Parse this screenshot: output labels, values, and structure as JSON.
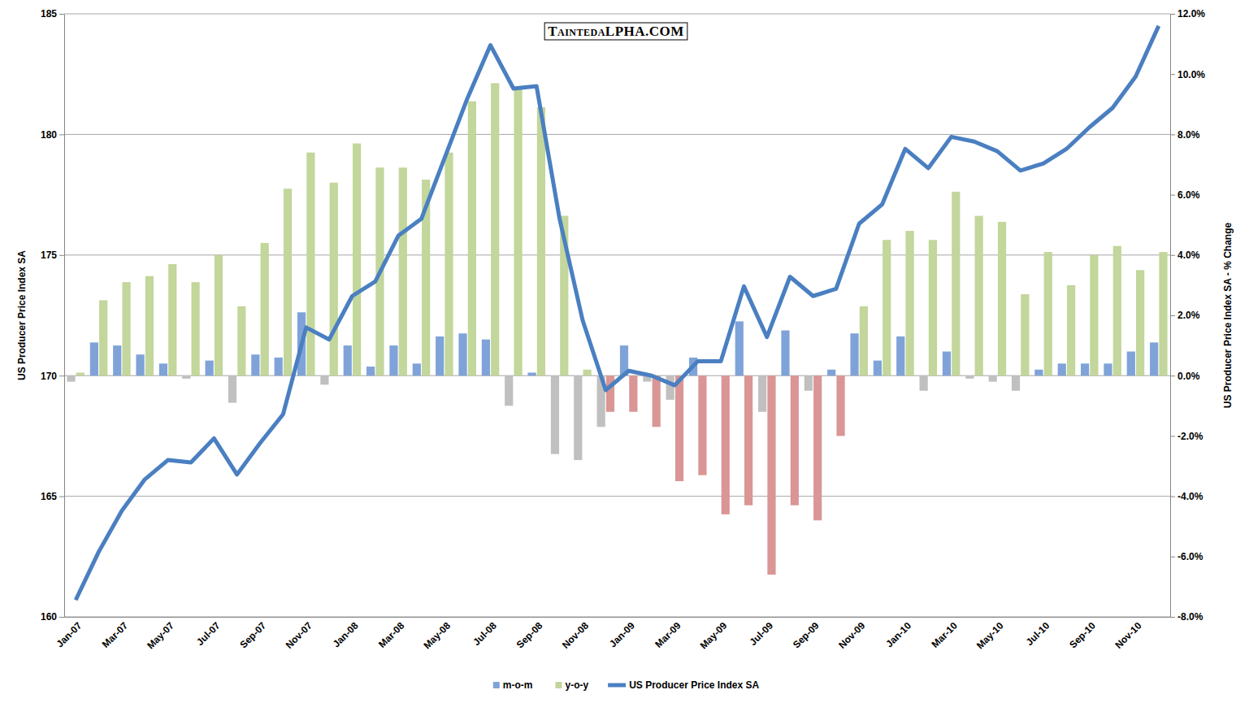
{
  "chart_data": {
    "type": "bar",
    "annotations": [
      "TaintedαLPHA.COM"
    ],
    "y_label": "US Producer Price Index SA",
    "y2_label": "US Producer Price Index SA - % Change",
    "categories": [
      "Jan-07",
      null,
      "Mar-07",
      null,
      "May-07",
      null,
      "Jul-07",
      null,
      "Sep-07",
      null,
      "Nov-07",
      null,
      "Jan-08",
      null,
      "Mar-08",
      null,
      "May-08",
      null,
      "Jul-08",
      null,
      "Sep-08",
      null,
      "Nov-08",
      null,
      "Jan-09",
      null,
      "Mar-09",
      null,
      "May-09",
      null,
      "Jul-09",
      null,
      "Sep-09",
      null,
      "Nov-09",
      null,
      "Jan-10",
      null,
      "Mar-10",
      null,
      "May-10",
      null,
      "Jul-10",
      null,
      "Sep-10",
      null,
      "Nov-10",
      null
    ],
    "ylim": [
      160,
      185
    ],
    "yticks": [
      160,
      165,
      170,
      175,
      180,
      185
    ],
    "y2lim": [
      -8,
      12
    ],
    "y2ticks": [
      {
        "value": -8,
        "label": "-8.0%"
      },
      {
        "value": -6,
        "label": "-6.0%"
      },
      {
        "value": -4,
        "label": "-4.0%"
      },
      {
        "value": -2,
        "label": "-2.0%"
      },
      {
        "value": 0,
        "label": "0.0%"
      },
      {
        "value": 2,
        "label": "2.0%"
      },
      {
        "value": 4,
        "label": "4.0%"
      },
      {
        "value": 6,
        "label": "6.0%"
      },
      {
        "value": 8,
        "label": "8.0%"
      },
      {
        "value": 10,
        "label": "10.0%"
      },
      {
        "value": 12,
        "label": "12.0%"
      }
    ],
    "grid": true,
    "legend": "bottom",
    "series": [
      {
        "name": "m-o-m",
        "type": "bar",
        "axis": "y2",
        "color": "#7fa3d8",
        "colors": [
          "#c0c0c0",
          "#7fa3d8",
          "#7fa3d8",
          "#7fa3d8",
          "#7fa3d8",
          "#c0c0c0",
          "#7fa3d8",
          "#c0c0c0",
          "#7fa3d8",
          "#7fa3d8",
          "#7fa3d8",
          "#c0c0c0",
          "#7fa3d8",
          "#7fa3d8",
          "#7fa3d8",
          "#7fa3d8",
          "#7fa3d8",
          "#7fa3d8",
          "#7fa3d8",
          "#c0c0c0",
          "#7fa3d8",
          "#c0c0c0",
          "#c0c0c0",
          "#c0c0c0",
          "#7fa3d8",
          "#c0c0c0",
          "#c0c0c0",
          "#7fa3d8",
          "#7fa3d8",
          "#7fa3d8",
          "#c0c0c0",
          "#7fa3d8",
          "#c0c0c0",
          "#7fa3d8",
          "#7fa3d8",
          "#7fa3d8",
          "#7fa3d8",
          "#c0c0c0",
          "#7fa3d8",
          "#c0c0c0",
          "#c0c0c0",
          "#c0c0c0",
          "#7fa3d8",
          "#7fa3d8",
          "#7fa3d8",
          "#7fa3d8",
          "#7fa3d8",
          "#7fa3d8"
        ],
        "values": [
          -0.2,
          1.1,
          1.0,
          0.7,
          0.4,
          -0.1,
          0.5,
          -0.9,
          0.7,
          0.6,
          2.1,
          -0.3,
          1.0,
          0.3,
          1.0,
          0.4,
          1.3,
          1.4,
          1.2,
          -1.0,
          0.1,
          -2.6,
          -2.8,
          -1.7,
          1.0,
          -0.2,
          -0.8,
          0.6,
          0.0,
          1.8,
          -1.2,
          1.5,
          -0.5,
          0.2,
          1.4,
          0.5,
          1.3,
          -0.5,
          0.8,
          -0.1,
          -0.2,
          -0.5,
          0.2,
          0.4,
          0.4,
          0.4,
          0.8,
          1.1
        ]
      },
      {
        "name": "y-o-y",
        "type": "bar",
        "axis": "y2",
        "color": "#c3d69b",
        "colors": [
          "#c3d69b",
          "#c3d69b",
          "#c3d69b",
          "#c3d69b",
          "#c3d69b",
          "#c3d69b",
          "#c3d69b",
          "#c3d69b",
          "#c3d69b",
          "#c3d69b",
          "#c3d69b",
          "#c3d69b",
          "#c3d69b",
          "#c3d69b",
          "#c3d69b",
          "#c3d69b",
          "#c3d69b",
          "#c3d69b",
          "#c3d69b",
          "#c3d69b",
          "#c3d69b",
          "#c3d69b",
          "#c3d69b",
          "#d99694",
          "#d99694",
          "#d99694",
          "#d99694",
          "#d99694",
          "#d99694",
          "#d99694",
          "#d99694",
          "#d99694",
          "#d99694",
          "#d99694",
          "#c3d69b",
          "#c3d69b",
          "#c3d69b",
          "#c3d69b",
          "#c3d69b",
          "#c3d69b",
          "#c3d69b",
          "#c3d69b",
          "#c3d69b",
          "#c3d69b",
          "#c3d69b",
          "#c3d69b",
          "#c3d69b",
          "#c3d69b"
        ],
        "values": [
          0.1,
          2.5,
          3.1,
          3.3,
          3.7,
          3.1,
          4.0,
          2.3,
          4.4,
          6.2,
          7.4,
          6.4,
          7.7,
          6.9,
          6.9,
          6.5,
          7.4,
          9.1,
          9.7,
          9.5,
          8.9,
          5.3,
          0.2,
          -1.2,
          -1.2,
          -1.7,
          -3.5,
          -3.3,
          -4.6,
          -4.3,
          -6.6,
          -4.3,
          -4.8,
          -2.0,
          2.3,
          4.5,
          4.8,
          4.5,
          6.1,
          5.3,
          5.1,
          2.7,
          4.1,
          3.0,
          4.0,
          4.3,
          3.5,
          4.1
        ]
      },
      {
        "name": "US Producer Price Index SA",
        "type": "line",
        "color": "#4a7fc1",
        "values": [
          160.7,
          162.7,
          164.4,
          165.7,
          166.5,
          166.4,
          167.4,
          165.9,
          167.2,
          168.4,
          172.0,
          171.5,
          173.3,
          173.9,
          175.8,
          176.5,
          179.0,
          181.5,
          183.7,
          181.9,
          182.0,
          176.5,
          172.3,
          169.4,
          170.2,
          170.0,
          169.6,
          170.6,
          170.6,
          173.7,
          171.6,
          174.1,
          173.3,
          173.6,
          176.3,
          177.1,
          179.4,
          178.6,
          179.9,
          179.7,
          179.3,
          178.5,
          178.8,
          179.4,
          180.3,
          181.1,
          182.4,
          184.5
        ]
      }
    ]
  }
}
